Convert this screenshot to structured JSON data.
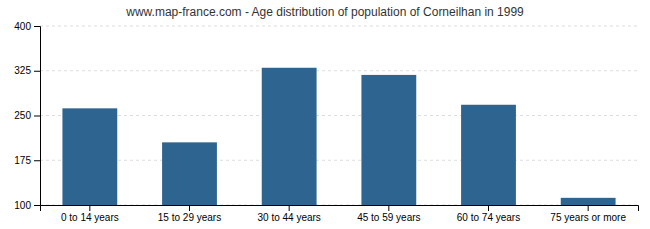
{
  "chart_data": {
    "type": "bar",
    "title": "www.map-france.com - Age distribution of population of Corneilhan in 1999",
    "categories": [
      "0 to 14 years",
      "15 to 29 years",
      "30 to 44 years",
      "45 to 59 years",
      "60 to 74 years",
      "75 years or more"
    ],
    "values": [
      262,
      205,
      330,
      318,
      268,
      112
    ],
    "color": "#2e6490",
    "ylim": [
      100,
      400
    ],
    "yticks": [
      100,
      175,
      250,
      325,
      400
    ],
    "grid": true
  }
}
